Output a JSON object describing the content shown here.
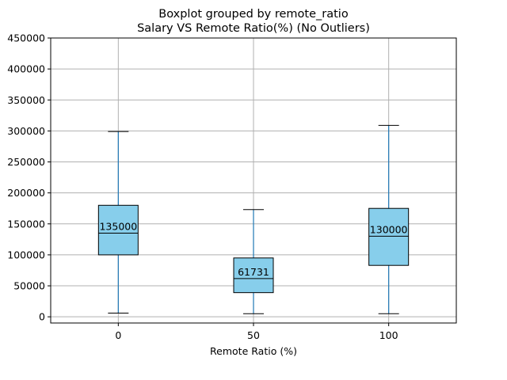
{
  "chart_data": {
    "type": "boxplot",
    "title": "Boxplot grouped by remote_ratio",
    "subtitle": "Salary VS Remote Ratio(%) (No Outliers)",
    "xlabel": "Remote Ratio (%)",
    "ylabel": "",
    "categories": [
      "0",
      "50",
      "100"
    ],
    "boxes": [
      {
        "category": "0",
        "whisker_low": 6000,
        "q1": 100000,
        "median": 135000,
        "q3": 180000,
        "whisker_high": 299000,
        "median_label": "135000"
      },
      {
        "category": "50",
        "whisker_low": 5000,
        "q1": 39000,
        "median": 61731,
        "q3": 95000,
        "whisker_high": 173000,
        "median_label": "61731"
      },
      {
        "category": "100",
        "whisker_low": 5000,
        "q1": 83000,
        "median": 130000,
        "q3": 175000,
        "whisker_high": 309000,
        "median_label": "130000"
      }
    ],
    "ylim": [
      -10000,
      450000
    ],
    "yticks": [
      0,
      50000,
      100000,
      150000,
      200000,
      250000,
      300000,
      350000,
      400000,
      450000
    ],
    "grid": true,
    "colors": {
      "box_fill": "#87ceeb",
      "box_edge": "#000000",
      "whisker": "#1f77b4",
      "median": "#000000",
      "grid": "#b0b0b0"
    }
  }
}
